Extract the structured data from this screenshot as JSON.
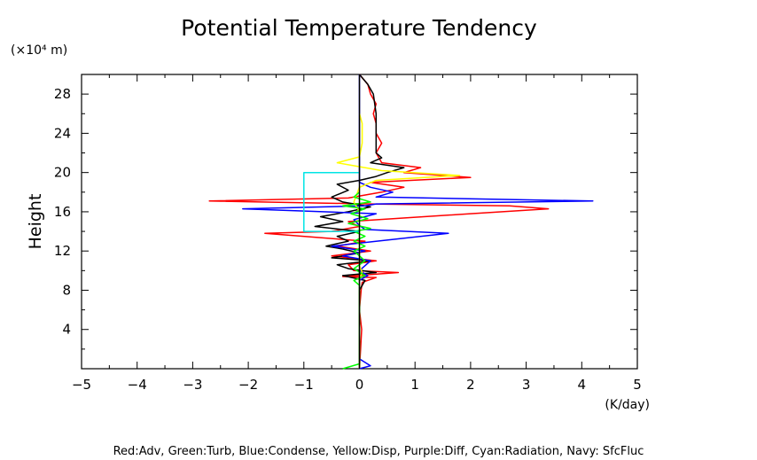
{
  "chart_data": {
    "type": "line",
    "title": "Potential Temperature Tendency",
    "ylabel": "Height",
    "yunit": "(×10⁴ m)",
    "xunit": "(K/day)",
    "footer": "Red:Adv, Green:Turb, Blue:Condense, Yellow:Disp, Purple:Diff, Cyan:Radiation, Navy: SfcFluc",
    "xlim": [
      -5,
      5
    ],
    "ylim": [
      0,
      30
    ],
    "xticks": [
      -5,
      -4,
      -3,
      -2,
      -1,
      0,
      1,
      2,
      3,
      4,
      5
    ],
    "yticks": [
      4,
      8,
      12,
      16,
      20,
      24,
      28
    ],
    "grid": false,
    "series": [
      {
        "color": "#ff0000",
        "points": [
          [
            0,
            0
          ],
          [
            0.02,
            2
          ],
          [
            0.04,
            4
          ],
          [
            0,
            6
          ],
          [
            0.03,
            8
          ],
          [
            0.05,
            8.8
          ],
          [
            0.3,
            9.3
          ],
          [
            -0.3,
            9.4
          ],
          [
            0.7,
            9.8
          ],
          [
            -0.1,
            10
          ],
          [
            -0.2,
            10.6
          ],
          [
            0.3,
            11
          ],
          [
            -0.5,
            11.5
          ],
          [
            0.2,
            12
          ],
          [
            -0.4,
            12.5
          ],
          [
            0.1,
            13
          ],
          [
            -1.7,
            13.8
          ],
          [
            -0.5,
            14
          ],
          [
            0,
            14.5
          ],
          [
            -0.2,
            15
          ],
          [
            2,
            15.8
          ],
          [
            3.4,
            16.3
          ],
          [
            2.7,
            16.6
          ],
          [
            0.2,
            16.8
          ],
          [
            -2.7,
            17.1
          ],
          [
            -0.2,
            17.4
          ],
          [
            0.4,
            18
          ],
          [
            0.8,
            18.5
          ],
          [
            0.2,
            19
          ],
          [
            2,
            19.5
          ],
          [
            0.8,
            20
          ],
          [
            1.1,
            20.5
          ],
          [
            0.4,
            21
          ],
          [
            0.3,
            22
          ],
          [
            0.4,
            23
          ],
          [
            0.3,
            24
          ],
          [
            0.3,
            25
          ],
          [
            0.25,
            26
          ],
          [
            0.3,
            27
          ],
          [
            0.2,
            28
          ],
          [
            0.15,
            29
          ],
          [
            0,
            30
          ]
        ]
      },
      {
        "color": "#000000",
        "points": [
          [
            0,
            0
          ],
          [
            0,
            8
          ],
          [
            0.1,
            9
          ],
          [
            -0.3,
            9.5
          ],
          [
            0.3,
            9.8
          ],
          [
            -0.2,
            10.2
          ],
          [
            -0.4,
            10.6
          ],
          [
            0.2,
            11
          ],
          [
            -0.5,
            11.3
          ],
          [
            0,
            11.8
          ],
          [
            -0.3,
            12.2
          ],
          [
            -0.6,
            12.5
          ],
          [
            -0.2,
            13
          ],
          [
            -0.4,
            13.5
          ],
          [
            0,
            14
          ],
          [
            -0.8,
            14.5
          ],
          [
            -0.3,
            15
          ],
          [
            -0.7,
            15.5
          ],
          [
            -0.2,
            16
          ],
          [
            0.2,
            16.5
          ],
          [
            -0.3,
            17
          ],
          [
            -0.5,
            17.5
          ],
          [
            -0.2,
            18.2
          ],
          [
            -0.4,
            18.8
          ],
          [
            0,
            19.2
          ],
          [
            0.3,
            19.6
          ],
          [
            0.5,
            20
          ],
          [
            0.8,
            20.5
          ],
          [
            0.2,
            21
          ],
          [
            0.4,
            21.5
          ],
          [
            0.3,
            22
          ],
          [
            0.3,
            24
          ],
          [
            0.3,
            26
          ],
          [
            0.25,
            28
          ],
          [
            0.15,
            29
          ],
          [
            0,
            30
          ]
        ]
      },
      {
        "color": "#0000ff",
        "points": [
          [
            0,
            0
          ],
          [
            0.2,
            0.3
          ],
          [
            0,
            1
          ],
          [
            0,
            9
          ],
          [
            0.15,
            9.5
          ],
          [
            0,
            10
          ],
          [
            0.2,
            11
          ],
          [
            -0.3,
            11.5
          ],
          [
            0.1,
            12
          ],
          [
            -0.5,
            12.5
          ],
          [
            1.6,
            13.8
          ],
          [
            0.1,
            14.2
          ],
          [
            0,
            14.6
          ],
          [
            -0.1,
            15.2
          ],
          [
            0.3,
            15.8
          ],
          [
            -2.1,
            16.3
          ],
          [
            0.1,
            16.6
          ],
          [
            0.3,
            16.8
          ],
          [
            4.2,
            17.1
          ],
          [
            0.3,
            17.5
          ],
          [
            0.6,
            18
          ],
          [
            0.2,
            18.5
          ],
          [
            0,
            19
          ],
          [
            0,
            30
          ]
        ]
      },
      {
        "color": "#ffff00",
        "points": [
          [
            0,
            0
          ],
          [
            0,
            9.2
          ],
          [
            0.05,
            9.8
          ],
          [
            0,
            10.5
          ],
          [
            0,
            16
          ],
          [
            -0.1,
            17
          ],
          [
            0,
            18.5
          ],
          [
            0.3,
            19.2
          ],
          [
            1.8,
            19.7
          ],
          [
            0.4,
            20.2
          ],
          [
            -0.4,
            21
          ],
          [
            0,
            21.6
          ],
          [
            0.05,
            23
          ],
          [
            0.05,
            25
          ],
          [
            0,
            26
          ]
        ]
      },
      {
        "color": "#00ff00",
        "points": [
          [
            -0.3,
            0
          ],
          [
            0,
            0.5
          ],
          [
            0,
            8.5
          ],
          [
            -0.1,
            9
          ],
          [
            0.1,
            9.5
          ],
          [
            -0.1,
            10.2
          ],
          [
            0.1,
            11
          ],
          [
            -0.1,
            12
          ],
          [
            0.1,
            12.5
          ],
          [
            -0.1,
            13
          ],
          [
            0.1,
            13.5
          ],
          [
            -0.1,
            14
          ],
          [
            0.2,
            14.3
          ],
          [
            -0.2,
            14.8
          ],
          [
            0.15,
            15.3
          ],
          [
            -0.15,
            15.8
          ],
          [
            0.1,
            16.3
          ],
          [
            -0.3,
            16.6
          ],
          [
            0.2,
            17
          ],
          [
            -0.1,
            17.5
          ],
          [
            0,
            18
          ]
        ]
      },
      {
        "color": "#00e5e5",
        "points": [
          [
            0,
            14
          ],
          [
            -1,
            14
          ],
          [
            -1,
            20
          ],
          [
            0,
            20
          ]
        ]
      },
      {
        "color": "#000000",
        "points": [
          [
            0,
            0
          ],
          [
            0,
            30
          ]
        ]
      }
    ]
  }
}
